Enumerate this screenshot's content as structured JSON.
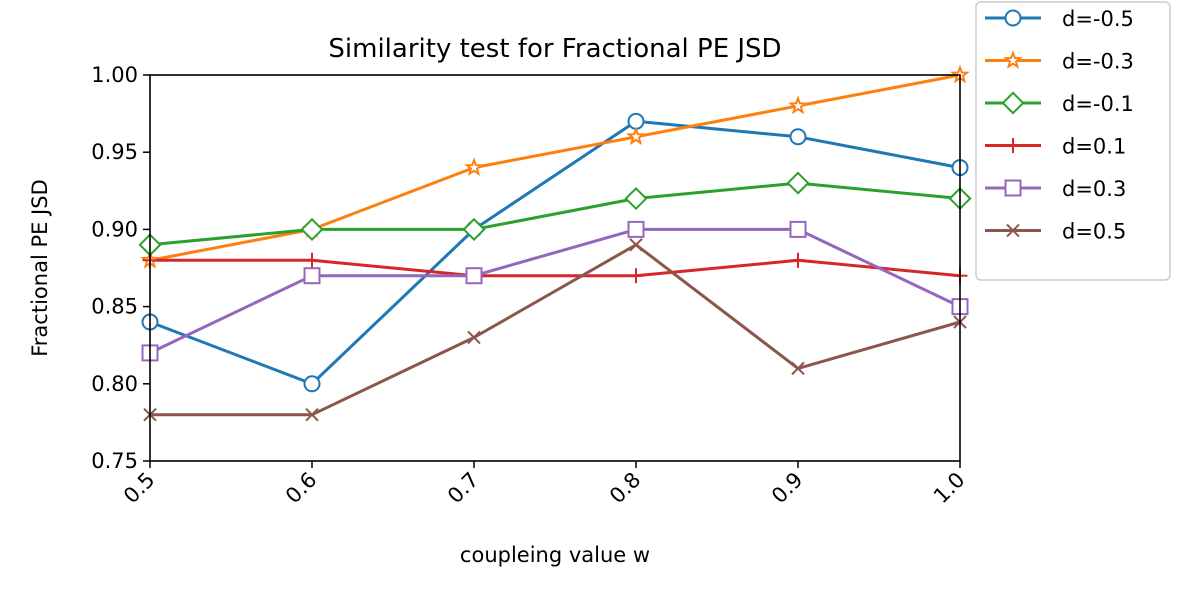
{
  "chart_data": {
    "type": "line",
    "title": "Similarity test for Fractional PE JSD",
    "xlabel": "coupleing value w",
    "ylabel": "Fractional PE JSD",
    "x": [
      0.5,
      0.6,
      0.7,
      0.8,
      0.9,
      1.0
    ],
    "xticks": [
      "0.5",
      "0.6",
      "0.7",
      "0.8",
      "0.9",
      "1.0"
    ],
    "yticks": [
      "0.75",
      "0.80",
      "0.85",
      "0.90",
      "0.95",
      "1.00"
    ],
    "xlim": [
      0.5,
      1.0
    ],
    "ylim": [
      0.75,
      1.0
    ],
    "grid": false,
    "legend_position": "outside-top-right",
    "series": [
      {
        "name": "d=-0.5",
        "color": "#1f77b4",
        "marker": "circle",
        "values": [
          0.84,
          0.8,
          0.9,
          0.97,
          0.96,
          0.94
        ]
      },
      {
        "name": "d=-0.3",
        "color": "#ff7f0e",
        "marker": "star",
        "values": [
          0.88,
          0.9,
          0.94,
          0.96,
          0.98,
          1.0
        ]
      },
      {
        "name": "d=-0.1",
        "color": "#2ca02c",
        "marker": "diamond",
        "values": [
          0.89,
          0.9,
          0.9,
          0.92,
          0.93,
          0.92
        ]
      },
      {
        "name": "d=0.1",
        "color": "#d62728",
        "marker": "plus",
        "values": [
          0.88,
          0.88,
          0.87,
          0.87,
          0.88,
          0.87
        ]
      },
      {
        "name": "d=0.3",
        "color": "#9467bd",
        "marker": "square",
        "values": [
          0.82,
          0.87,
          0.87,
          0.9,
          0.9,
          0.85
        ]
      },
      {
        "name": "d=0.5",
        "color": "#8c564b",
        "marker": "x",
        "values": [
          0.78,
          0.78,
          0.83,
          0.89,
          0.81,
          0.84
        ]
      }
    ]
  }
}
